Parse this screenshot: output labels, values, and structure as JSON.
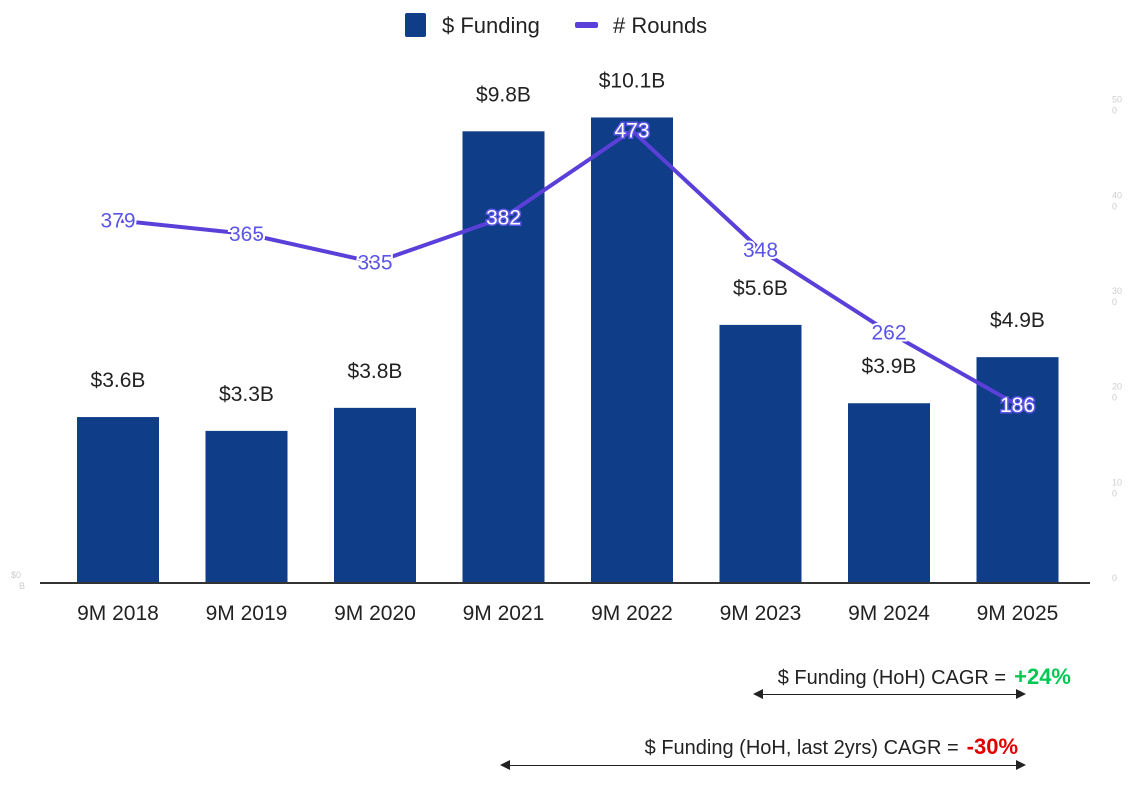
{
  "chart_data": {
    "type": "bar",
    "categories": [
      "9M 2018",
      "9M 2019",
      "9M 2020",
      "9M 2021",
      "9M 2022",
      "9M 2023",
      "9M 2024",
      "9M 2025"
    ],
    "series": [
      {
        "name": "$ Funding",
        "kind": "bar",
        "axis": "left",
        "color": "#0f3d87",
        "values": [
          3.6,
          3.3,
          3.8,
          9.8,
          10.1,
          5.6,
          3.9,
          4.9
        ],
        "labels": [
          "$3.6B",
          "$3.3B",
          "$3.8B",
          "$9.8B",
          "$10.1B",
          "$5.6B",
          "$3.9B",
          "$4.9B"
        ]
      },
      {
        "name": "# Rounds",
        "kind": "line",
        "axis": "right",
        "color": "#5b3fd9",
        "values": [
          379,
          365,
          335,
          382,
          473,
          348,
          262,
          186
        ],
        "labels": [
          "379",
          "365",
          "335",
          "382",
          "473",
          "348",
          "262",
          "186"
        ]
      }
    ],
    "ylim": [
      0,
      11
    ],
    "y2lim": [
      0,
      530
    ],
    "y2_ticks": [
      "50\n0",
      "40\n0",
      "30\n0",
      "20\n0",
      "10\n0",
      "0"
    ],
    "y_faint_tick": "$0\nB",
    "legend_position": "top-center",
    "xlabel": "",
    "ylabel": ""
  },
  "legend": {
    "funding": "$ Funding",
    "rounds": "# Rounds"
  },
  "notes": [
    {
      "label": "$ Funding (HoH) CAGR =",
      "value": "+24%",
      "value_color": "#00c853"
    },
    {
      "label": "$ Funding (HoH, last 2yrs) CAGR =",
      "value": "-30%",
      "value_color": "#e00000"
    }
  ],
  "colors": {
    "bar": "#0f3d87",
    "line": "#5b3fd9",
    "axis": "#333333"
  }
}
